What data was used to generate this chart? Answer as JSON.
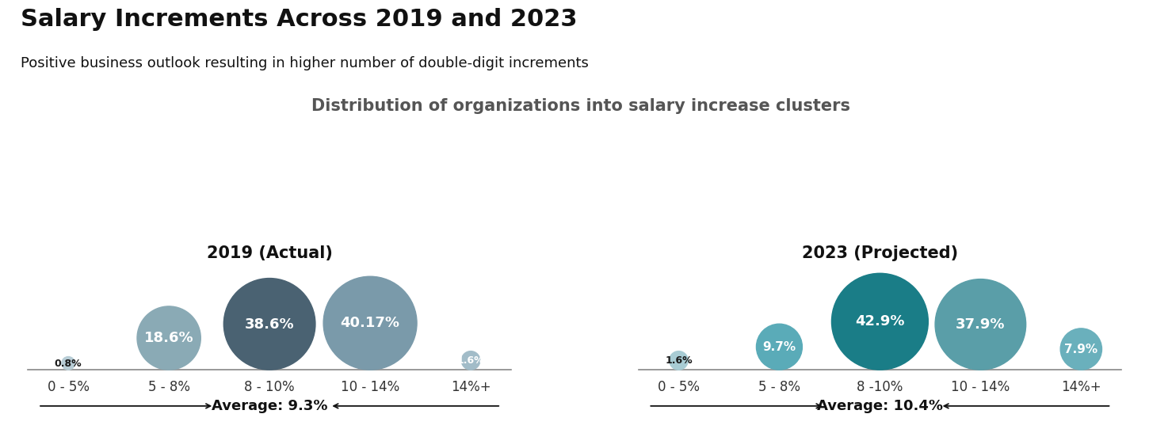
{
  "title": "Salary Increments Across 2019 and 2023",
  "subtitle": "Positive business outlook resulting in higher number of double-digit increments",
  "section_title": "Distribution of organizations into salary increase clusters",
  "left_chart_title": "2019 (Actual)",
  "right_chart_title": "2023 (Projected)",
  "left_average": "Average: 9.3%",
  "right_average": "Average: 10.4%",
  "categories": [
    "0 - 5%",
    "5 - 8%",
    "8 - 10%",
    "10 - 14%",
    "14%+"
  ],
  "right_categories": [
    "0 - 5%",
    "5 - 8%",
    "8 -10%",
    "10 - 14%",
    "14%+"
  ],
  "left_values": [
    0.8,
    18.6,
    38.6,
    40.17,
    1.6
  ],
  "right_values": [
    1.6,
    9.7,
    42.9,
    37.9,
    7.9
  ],
  "left_labels": [
    "0.8%",
    "18.6%",
    "38.6%",
    "40.17%",
    "1.6%"
  ],
  "right_labels": [
    "1.6%",
    "9.7%",
    "42.9%",
    "37.9%",
    "7.9%"
  ],
  "left_colors": [
    "#b8cdd6",
    "#8aaab5",
    "#4a6272",
    "#7a9aaa",
    "#a2bcc8"
  ],
  "right_colors": [
    "#a8ccd4",
    "#5aabb8",
    "#1a7d87",
    "#5a9ea8",
    "#6ab0bc"
  ],
  "left_label_colors": [
    "#1a1a1a",
    "#ffffff",
    "#ffffff",
    "#ffffff",
    "#ffffff"
  ],
  "right_label_colors": [
    "#1a1a1a",
    "#ffffff",
    "#ffffff",
    "#ffffff",
    "#ffffff"
  ],
  "background_color": "#ffffff",
  "title_fontsize": 22,
  "subtitle_fontsize": 13,
  "section_fontsize": 15,
  "chart_title_fontsize": 15,
  "label_fontsize": 13,
  "category_fontsize": 12,
  "average_fontsize": 13
}
